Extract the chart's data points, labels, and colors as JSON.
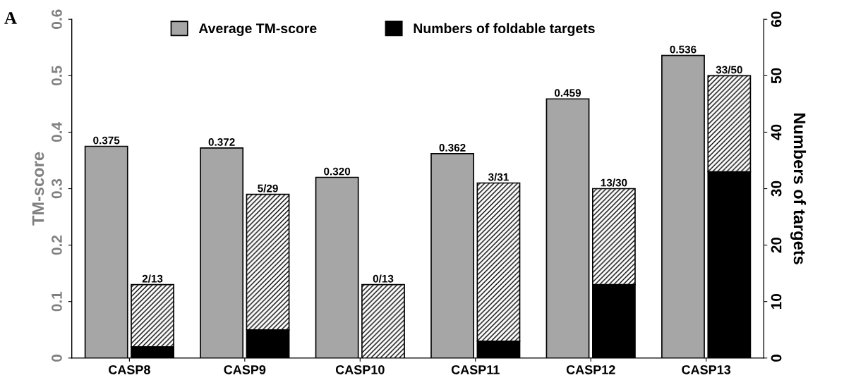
{
  "chart_data": {
    "type": "bar",
    "categories": [
      "CASP8",
      "CASP9",
      "CASP10",
      "CASP11",
      "CASP12",
      "CASP13"
    ],
    "ylabel": "TM-score",
    "y2label": "Numbers of targets",
    "annotations": [
      "A"
    ],
    "ylim": [
      0,
      0.6
    ],
    "yticks": [
      0,
      0.1,
      0.2,
      0.3,
      0.4,
      0.5,
      0.6
    ],
    "y2lim": [
      0,
      60
    ],
    "y2ticks": [
      0,
      10,
      20,
      30,
      40,
      50,
      60
    ],
    "stacked": true,
    "legend": "top",
    "grid": false,
    "series": [
      {
        "name": "Average TM-score",
        "color": "#a6a6a6",
        "values": [
          0.375,
          0.372,
          0.32,
          0.362,
          0.459,
          0.536
        ],
        "value_labels": [
          "0.375",
          "0.372",
          "0.320",
          "0.362",
          "0.459",
          "0.536"
        ]
      },
      {
        "name": "Numbers of foldable targets",
        "color": "#000000",
        "axis": "y2",
        "values": [
          2,
          5,
          0,
          3,
          13,
          33
        ]
      },
      {
        "color": "#000000",
        "axis": "y2",
        "values": [
          11,
          24,
          13,
          28,
          17,
          17
        ],
        "value_labels": [
          "2/13",
          "5/29",
          "0/13",
          "3/31",
          "13/30",
          "33/50"
        ]
      }
    ]
  }
}
